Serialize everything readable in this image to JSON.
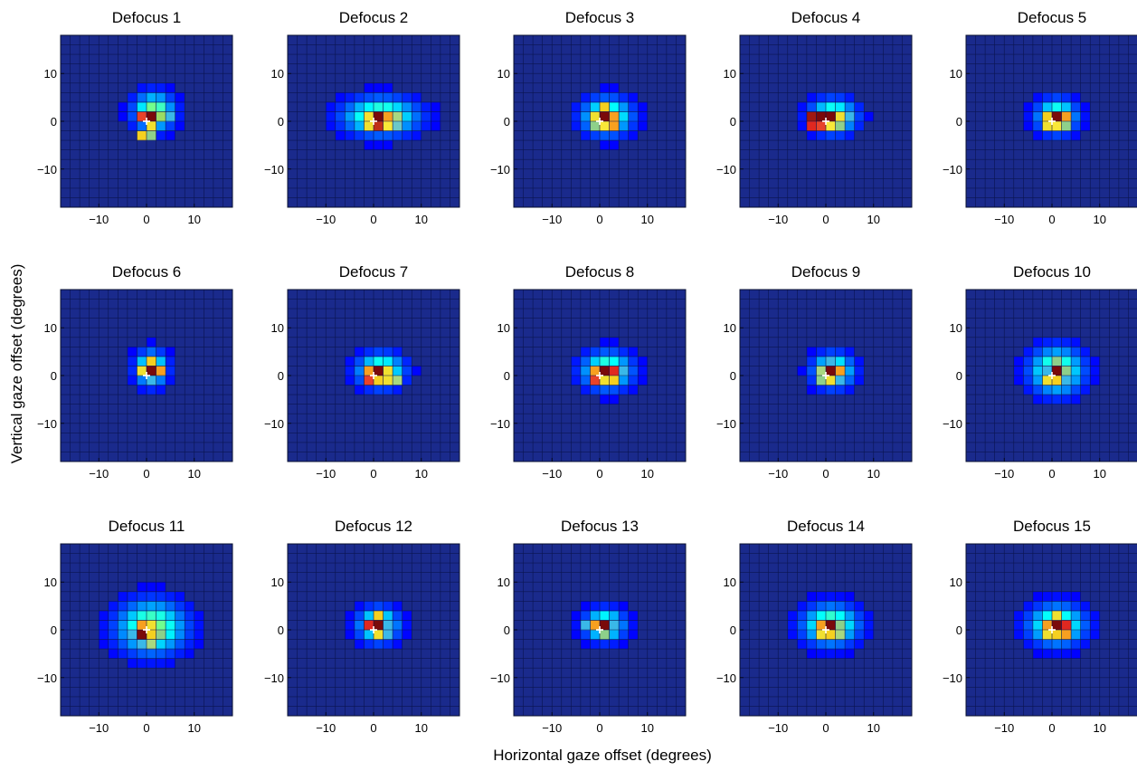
{
  "figure": {
    "xlabel": "Horizontal gaze offset (degrees)",
    "ylabel": "Vertical gaze offset (degrees)"
  },
  "chart_data": {
    "type": "heatmap",
    "xlabel": "Horizontal gaze offset (degrees)",
    "ylabel": "Vertical gaze offset (degrees)",
    "xlim": [
      -18,
      18
    ],
    "ylim": [
      -18,
      18
    ],
    "xticks": [
      -10,
      0,
      10
    ],
    "yticks": [
      -10,
      0,
      10
    ],
    "x_tick_labels": [
      "−10",
      "0",
      "10"
    ],
    "y_tick_labels": [
      "10",
      "0",
      "−10"
    ],
    "bin_width_degrees": 2,
    "grid": true,
    "colormap": "jet",
    "colors": {
      "background": "#1a2a8c",
      "grid": "#0a1450",
      "marker": "#ffffff"
    },
    "panels": [
      {
        "title": "Defocus 1",
        "marker": [
          0,
          0
        ],
        "peak": [
          1.5,
          2
        ],
        "spread": [
          2.6,
          2.4
        ],
        "bins": [
          [
            0,
            1,
            "#e8432a"
          ],
          [
            1,
            1,
            "#7a0a0a"
          ],
          [
            2,
            1,
            "#9bdc64"
          ],
          [
            1,
            0,
            "#f0e030"
          ],
          [
            0,
            -1,
            "#f5d020"
          ],
          [
            1,
            -1,
            "#8ed08a"
          ],
          [
            3,
            1,
            "#3ab8e8"
          ]
        ]
      },
      {
        "title": "Defocus 2",
        "marker": [
          0,
          0
        ],
        "peak": [
          1.5,
          1
        ],
        "spread": [
          4.8,
          2.4
        ],
        "bins": [
          [
            0,
            1,
            "#f8e030"
          ],
          [
            1,
            1,
            "#7a0a0a"
          ],
          [
            2,
            1,
            "#f7a020"
          ],
          [
            0,
            0,
            "#f0e030"
          ],
          [
            1,
            0,
            "#c03018"
          ],
          [
            2,
            0,
            "#fae838"
          ],
          [
            3,
            1,
            "#a8d880"
          ],
          [
            3,
            0,
            "#6cc8c8"
          ]
        ]
      },
      {
        "title": "Defocus 3",
        "marker": [
          0,
          0
        ],
        "peak": [
          1.5,
          1
        ],
        "spread": [
          3.2,
          2.4
        ],
        "bins": [
          [
            1,
            2,
            "#f5d020"
          ],
          [
            0,
            1,
            "#f0e030"
          ],
          [
            1,
            1,
            "#7a0a0a"
          ],
          [
            2,
            1,
            "#f7a020"
          ],
          [
            0,
            0,
            "#8ed08a"
          ],
          [
            1,
            0,
            "#fae838"
          ],
          [
            2,
            0,
            "#f7a020"
          ]
        ]
      },
      {
        "title": "Defocus 4",
        "marker": [
          0,
          0
        ],
        "peak": [
          1.5,
          1
        ],
        "spread": [
          3.0,
          2.2
        ],
        "bins": [
          [
            -1,
            1,
            "#a01810"
          ],
          [
            0,
            1,
            "#7a0a0a"
          ],
          [
            1,
            1,
            "#7a0a0a"
          ],
          [
            2,
            1,
            "#f0e030"
          ],
          [
            3,
            1,
            "#3ab8e8"
          ],
          [
            -1,
            0,
            "#e02820"
          ],
          [
            0,
            0,
            "#e8432a"
          ],
          [
            1,
            0,
            "#fae838"
          ],
          [
            2,
            0,
            "#8ed08a"
          ]
        ]
      },
      {
        "title": "Defocus 5",
        "marker": [
          0,
          0
        ],
        "peak": [
          1,
          1
        ],
        "spread": [
          2.6,
          2.2
        ],
        "bins": [
          [
            0,
            1,
            "#f5d020"
          ],
          [
            1,
            1,
            "#7a0a0a"
          ],
          [
            2,
            1,
            "#f7a020"
          ],
          [
            0,
            0,
            "#f0e030"
          ],
          [
            1,
            0,
            "#fae838"
          ],
          [
            2,
            0,
            "#8ed08a"
          ]
        ]
      },
      {
        "title": "Defocus 6",
        "marker": [
          0,
          0
        ],
        "peak": [
          1,
          1.5
        ],
        "spread": [
          2.0,
          2.2
        ],
        "bins": [
          [
            1,
            2,
            "#f5d020"
          ],
          [
            0,
            1,
            "#f0e030"
          ],
          [
            1,
            1,
            "#7a0a0a"
          ],
          [
            2,
            1,
            "#f7a020"
          ],
          [
            1,
            0,
            "#3ab8e8"
          ]
        ]
      },
      {
        "title": "Defocus 7",
        "marker": [
          0,
          0
        ],
        "peak": [
          1.5,
          1
        ],
        "spread": [
          3.0,
          2.2
        ],
        "bins": [
          [
            0,
            1,
            "#f7a020"
          ],
          [
            1,
            1,
            "#7a0a0a"
          ],
          [
            2,
            1,
            "#f0e030"
          ],
          [
            0,
            0,
            "#e8432a"
          ],
          [
            1,
            0,
            "#f5d020"
          ],
          [
            2,
            0,
            "#f0e030"
          ],
          [
            3,
            0,
            "#a8d880"
          ]
        ]
      },
      {
        "title": "Defocus 8",
        "marker": [
          0,
          0
        ],
        "peak": [
          1.5,
          1
        ],
        "spread": [
          3.2,
          2.4
        ],
        "bins": [
          [
            0,
            1,
            "#f7a020"
          ],
          [
            1,
            1,
            "#7a0a0a"
          ],
          [
            2,
            1,
            "#e02820"
          ],
          [
            0,
            0,
            "#e8432a"
          ],
          [
            1,
            0,
            "#f0e030"
          ],
          [
            2,
            0,
            "#f5d020"
          ],
          [
            3,
            1,
            "#3ab8e8"
          ]
        ]
      },
      {
        "title": "Defocus 9",
        "marker": [
          0,
          0
        ],
        "peak": [
          1.5,
          1
        ],
        "spread": [
          2.6,
          2.2
        ],
        "bins": [
          [
            1,
            2,
            "#3ab8e8"
          ],
          [
            0,
            1,
            "#a8d880"
          ],
          [
            1,
            1,
            "#7a0a0a"
          ],
          [
            2,
            1,
            "#f7a020"
          ],
          [
            0,
            0,
            "#8ed08a"
          ],
          [
            1,
            0,
            "#f0e030"
          ],
          [
            2,
            0,
            "#3ab8e8"
          ]
        ]
      },
      {
        "title": "Defocus 10",
        "marker": [
          0,
          0
        ],
        "peak": [
          1,
          1
        ],
        "spread": [
          3.4,
          3.0
        ],
        "bins": [
          [
            1,
            2,
            "#8ed08a"
          ],
          [
            0,
            1,
            "#3ab8e8"
          ],
          [
            1,
            1,
            "#7a0a0a"
          ],
          [
            2,
            1,
            "#8ed08a"
          ],
          [
            0,
            0,
            "#f0e030"
          ],
          [
            1,
            0,
            "#f5d020"
          ],
          [
            2,
            0,
            "#3ab8e8"
          ]
        ]
      },
      {
        "title": "Defocus 11",
        "marker": [
          0,
          0
        ],
        "peak": [
          1,
          0.5
        ],
        "spread": [
          4.4,
          3.4
        ],
        "bins": [
          [
            0,
            1,
            "#f7a020"
          ],
          [
            1,
            1,
            "#f0e030"
          ],
          [
            -1,
            0,
            "#3ab8e8"
          ],
          [
            0,
            0,
            "#7a0a0a"
          ],
          [
            1,
            0,
            "#f5d020"
          ],
          [
            2,
            0,
            "#8ed08a"
          ],
          [
            0,
            -1,
            "#3ab8e8"
          ],
          [
            1,
            -1,
            "#a8d880"
          ]
        ]
      },
      {
        "title": "Defocus 12",
        "marker": [
          0,
          0
        ],
        "peak": [
          1,
          1
        ],
        "spread": [
          2.6,
          2.2
        ],
        "bins": [
          [
            1,
            2,
            "#f5d020"
          ],
          [
            0,
            1,
            "#e02820"
          ],
          [
            1,
            1,
            "#7a0a0a"
          ],
          [
            2,
            1,
            "#3ab8e8"
          ],
          [
            1,
            0,
            "#f0e030"
          ],
          [
            2,
            0,
            "#3ab8e8"
          ]
        ]
      },
      {
        "title": "Defocus 13",
        "marker": [
          0,
          0
        ],
        "peak": [
          1,
          1
        ],
        "spread": [
          2.6,
          2.0
        ],
        "bins": [
          [
            0,
            1,
            "#f7a020"
          ],
          [
            1,
            1,
            "#7a0a0a"
          ],
          [
            2,
            1,
            "#3ab8e8"
          ],
          [
            -1,
            1,
            "#3ab8e8"
          ],
          [
            1,
            0,
            "#8ed08a"
          ]
        ]
      },
      {
        "title": "Defocus 14",
        "marker": [
          0,
          0
        ],
        "peak": [
          1,
          1
        ],
        "spread": [
          3.6,
          2.6
        ],
        "bins": [
          [
            0,
            1,
            "#f7a020"
          ],
          [
            1,
            1,
            "#7a0a0a"
          ],
          [
            2,
            1,
            "#8ed08a"
          ],
          [
            0,
            0,
            "#f0e030"
          ],
          [
            1,
            0,
            "#f5d020"
          ],
          [
            2,
            0,
            "#a8d880"
          ]
        ]
      },
      {
        "title": "Defocus 15",
        "marker": [
          0,
          0
        ],
        "peak": [
          1,
          1
        ],
        "spread": [
          3.6,
          2.6
        ],
        "bins": [
          [
            0,
            1,
            "#f7a020"
          ],
          [
            1,
            1,
            "#7a0a0a"
          ],
          [
            2,
            1,
            "#e02820"
          ],
          [
            0,
            0,
            "#f0e030"
          ],
          [
            1,
            0,
            "#f5d020"
          ],
          [
            2,
            0,
            "#f7a020"
          ],
          [
            1,
            2,
            "#f0e030"
          ]
        ]
      }
    ]
  }
}
